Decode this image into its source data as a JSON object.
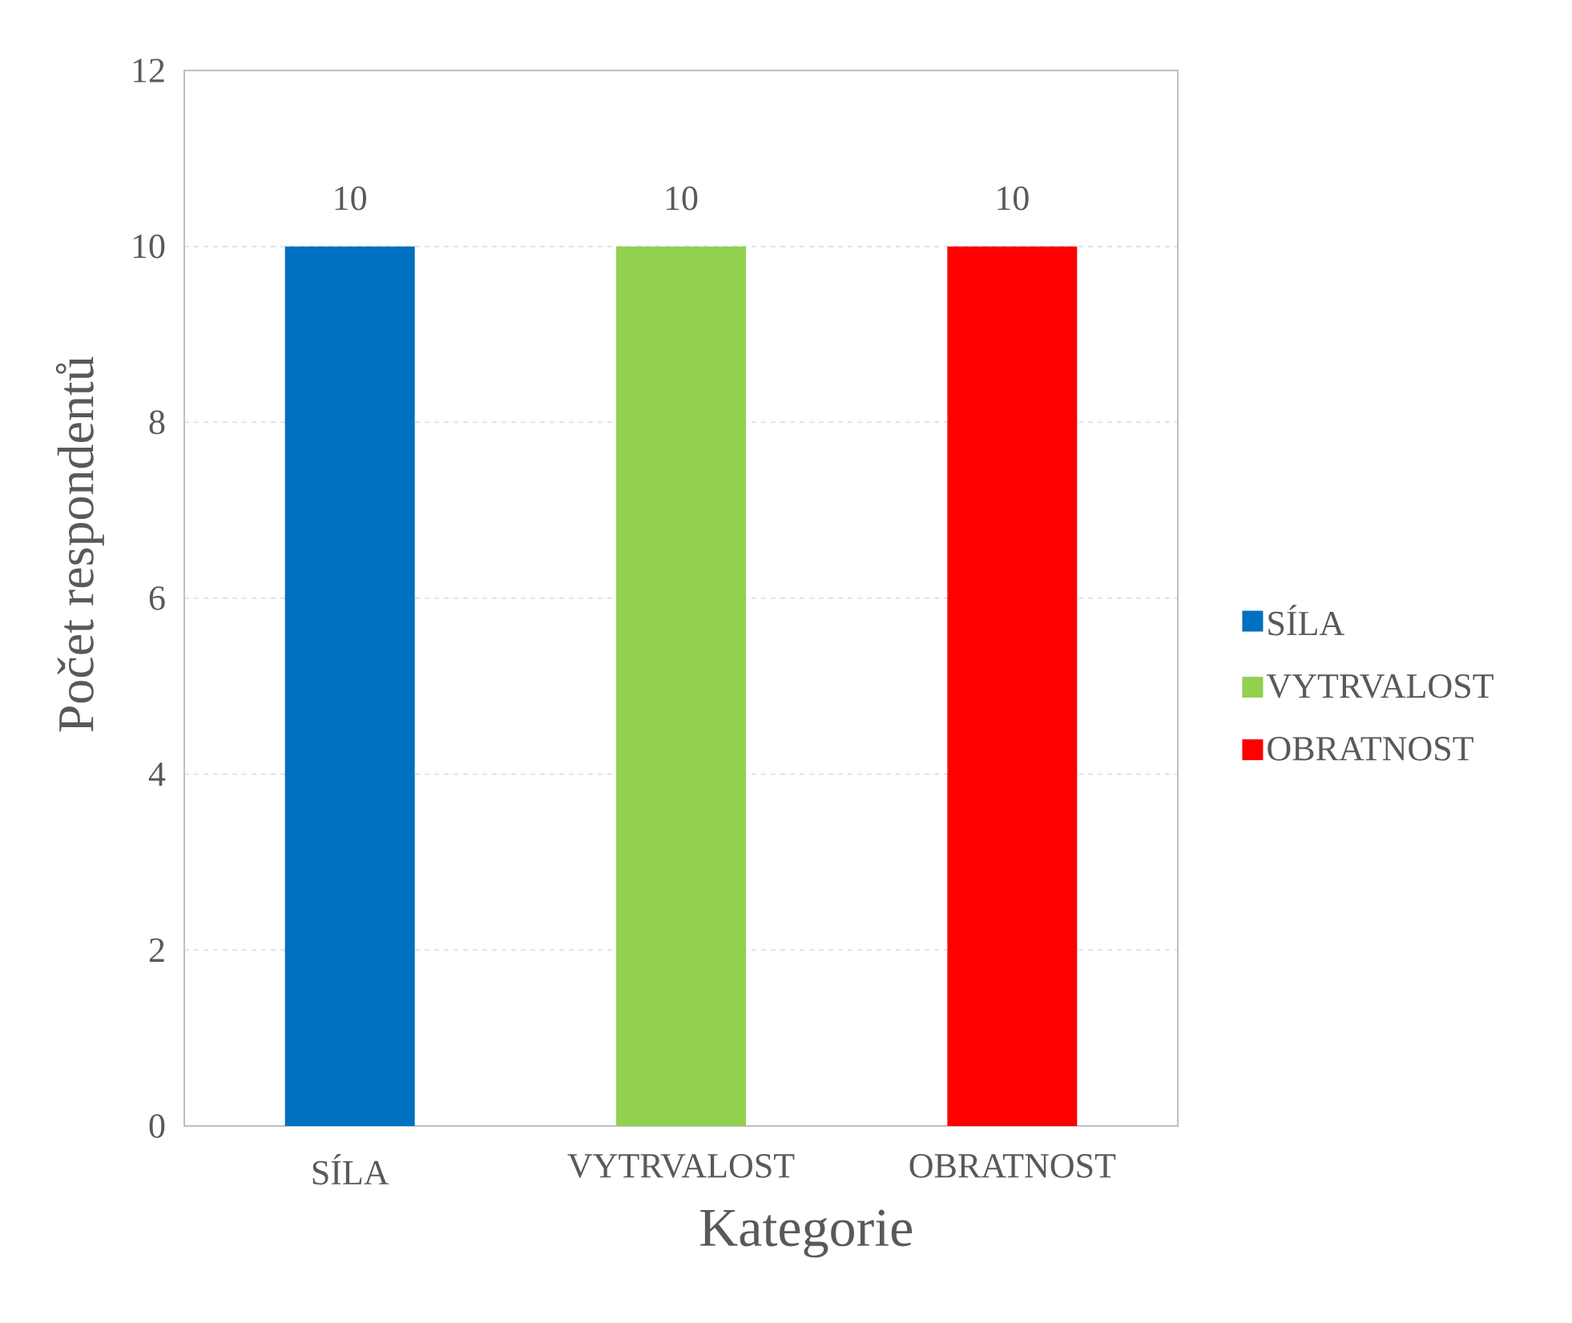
{
  "chart_data": {
    "type": "bar",
    "xlabel": "Kategorie",
    "ylabel": "Počet respondentů",
    "categories": [
      "SÍLA",
      "VYTRVALOST",
      "OBRATNOST"
    ],
    "series": [
      {
        "name": "SÍLA",
        "color": "#0070c0",
        "values": [
          10,
          null,
          null
        ]
      },
      {
        "name": "VYTRVALOST",
        "color": "#92d050",
        "values": [
          null,
          10,
          null
        ]
      },
      {
        "name": "OBRATNOST",
        "color": "#ff0000",
        "values": [
          null,
          null,
          10
        ]
      }
    ],
    "ylim": [
      0,
      12
    ],
    "yticks": [
      0,
      2,
      4,
      6,
      8,
      10,
      12
    ],
    "grid": "y",
    "legend": "right",
    "data_labels": true
  }
}
